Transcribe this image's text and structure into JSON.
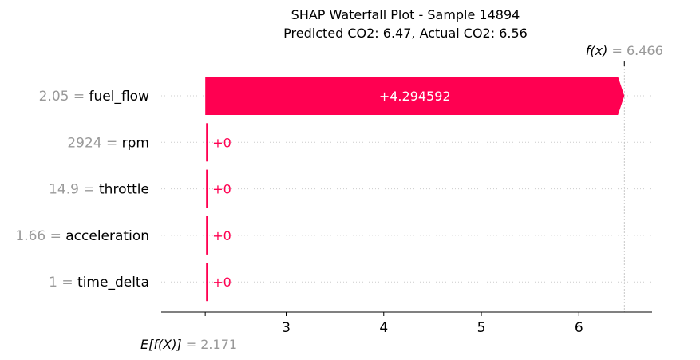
{
  "chart_data": {
    "type": "bar",
    "subtype": "shap-waterfall",
    "title": "SHAP Waterfall Plot - Sample 14894",
    "subtitle": "Predicted CO2: 6.47, Actual CO2: 6.56",
    "base_value": 2.171,
    "base_value_text": "2.171",
    "base_label": "E[f(X)]",
    "output_value": 6.466,
    "output_value_text": "6.466",
    "output_label": "f(x)",
    "xlim": [
      1.72,
      6.75
    ],
    "xticks": [
      3,
      4,
      5,
      6
    ],
    "xtick_labels": [
      "3",
      "4",
      "5",
      "6"
    ],
    "positive_color": "#ff0051",
    "negative_color": "#008bfb",
    "features": [
      {
        "name": "fuel_flow",
        "value": "2.05",
        "shap": 4.294592,
        "label": "+4.294592"
      },
      {
        "name": "rpm",
        "value": "2924",
        "shap": 0,
        "label": "+0"
      },
      {
        "name": "throttle",
        "value": "14.9",
        "shap": 0,
        "label": "+0"
      },
      {
        "name": "acceleration",
        "value": "1.66",
        "shap": 0,
        "label": "+0"
      },
      {
        "name": "time_delta",
        "value": "1",
        "shap": 0,
        "label": "+0"
      }
    ]
  }
}
